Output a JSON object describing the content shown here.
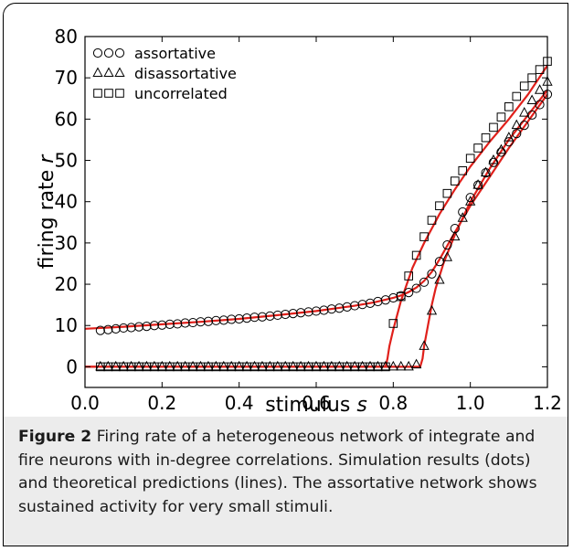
{
  "chart_data": {
    "type": "scatter",
    "xlabel": "stimulus",
    "xlabel_var": "s",
    "ylabel": "firing rate",
    "ylabel_var": "r",
    "xlim": [
      0,
      1.2
    ],
    "ylim": [
      -5,
      80
    ],
    "xticks": [
      "0.0",
      "0.2",
      "0.4",
      "0.6",
      "0.8",
      "1.0",
      "1.2"
    ],
    "yticks": [
      "0",
      "10",
      "20",
      "30",
      "40",
      "50",
      "60",
      "70",
      "80"
    ],
    "legend_position": "top-left",
    "series": [
      {
        "name": "assortative",
        "marker": "circle",
        "x": [
          0.04,
          0.06,
          0.08,
          0.1,
          0.12,
          0.14,
          0.16,
          0.18,
          0.2,
          0.22,
          0.24,
          0.26,
          0.28,
          0.3,
          0.32,
          0.34,
          0.36,
          0.38,
          0.4,
          0.42,
          0.44,
          0.46,
          0.48,
          0.5,
          0.52,
          0.54,
          0.56,
          0.58,
          0.6,
          0.62,
          0.64,
          0.66,
          0.68,
          0.7,
          0.72,
          0.74,
          0.76,
          0.78,
          0.8,
          0.82,
          0.84,
          0.86,
          0.88,
          0.9,
          0.92,
          0.94,
          0.96,
          0.98,
          1.0,
          1.02,
          1.04,
          1.06,
          1.08,
          1.1,
          1.12,
          1.14,
          1.16,
          1.18,
          1.2
        ],
        "y": [
          8.8,
          9.0,
          9.2,
          9.4,
          9.5,
          9.7,
          9.8,
          10.0,
          10.1,
          10.3,
          10.4,
          10.6,
          10.7,
          10.9,
          11.0,
          11.2,
          11.3,
          11.5,
          11.6,
          11.8,
          12.0,
          12.1,
          12.3,
          12.5,
          12.7,
          12.9,
          13.1,
          13.3,
          13.5,
          13.7,
          14.0,
          14.2,
          14.5,
          14.8,
          15.1,
          15.4,
          15.8,
          16.2,
          16.7,
          17.2,
          18.0,
          19.0,
          20.5,
          22.5,
          25.5,
          29.5,
          33.5,
          37.5,
          41.0,
          44.0,
          47.0,
          49.5,
          52.0,
          54.5,
          56.5,
          58.5,
          61.0,
          63.5,
          66.0
        ]
      },
      {
        "name": "disassortative",
        "marker": "triangle",
        "x": [
          0.04,
          0.06,
          0.08,
          0.1,
          0.12,
          0.14,
          0.16,
          0.18,
          0.2,
          0.22,
          0.24,
          0.26,
          0.28,
          0.3,
          0.32,
          0.34,
          0.36,
          0.38,
          0.4,
          0.42,
          0.44,
          0.46,
          0.48,
          0.5,
          0.52,
          0.54,
          0.56,
          0.58,
          0.6,
          0.62,
          0.64,
          0.66,
          0.68,
          0.7,
          0.72,
          0.74,
          0.76,
          0.78,
          0.8,
          0.82,
          0.84,
          0.86,
          0.88,
          0.9,
          0.92,
          0.94,
          0.96,
          0.98,
          1.0,
          1.02,
          1.04,
          1.06,
          1.08,
          1.1,
          1.12,
          1.14,
          1.16,
          1.18,
          1.2
        ],
        "y": [
          0,
          0,
          0,
          0,
          0,
          0,
          0,
          0,
          0,
          0,
          0,
          0,
          0,
          0,
          0,
          0,
          0,
          0,
          0,
          0,
          0,
          0,
          0,
          0,
          0,
          0,
          0,
          0,
          0,
          0,
          0,
          0,
          0,
          0,
          0,
          0,
          0,
          0,
          0,
          0,
          0,
          0.5,
          5.0,
          13.5,
          21.0,
          26.5,
          31.5,
          36.0,
          40.0,
          44.0,
          47.0,
          50.0,
          52.5,
          55.5,
          58.5,
          61.5,
          64.5,
          67.0,
          69.0
        ]
      },
      {
        "name": "uncorrelated",
        "marker": "square",
        "x": [
          0.04,
          0.06,
          0.08,
          0.1,
          0.12,
          0.14,
          0.16,
          0.18,
          0.2,
          0.22,
          0.24,
          0.26,
          0.28,
          0.3,
          0.32,
          0.34,
          0.36,
          0.38,
          0.4,
          0.42,
          0.44,
          0.46,
          0.48,
          0.5,
          0.52,
          0.54,
          0.56,
          0.58,
          0.6,
          0.62,
          0.64,
          0.66,
          0.68,
          0.7,
          0.72,
          0.74,
          0.76,
          0.78,
          0.8,
          0.82,
          0.84,
          0.86,
          0.88,
          0.9,
          0.92,
          0.94,
          0.96,
          0.98,
          1.0,
          1.02,
          1.04,
          1.06,
          1.08,
          1.1,
          1.12,
          1.14,
          1.16,
          1.18,
          1.2
        ],
        "y": [
          0,
          0,
          0,
          0,
          0,
          0,
          0,
          0,
          0,
          0,
          0,
          0,
          0,
          0,
          0,
          0,
          0,
          0,
          0,
          0,
          0,
          0,
          0,
          0,
          0,
          0,
          0,
          0,
          0,
          0,
          0,
          0,
          0,
          0,
          0,
          0,
          0,
          0,
          10.5,
          17.0,
          22.0,
          27.0,
          31.5,
          35.5,
          39.0,
          42.0,
          45.0,
          47.5,
          50.5,
          53.0,
          55.5,
          58.0,
          60.5,
          63.0,
          65.5,
          68.0,
          70.0,
          72.0,
          74.0
        ]
      }
    ],
    "theory_lines": [
      {
        "color": "#e0201b",
        "x": [
          0,
          0.1,
          0.2,
          0.3,
          0.4,
          0.5,
          0.6,
          0.7,
          0.75,
          0.8,
          0.82,
          0.84,
          0.86,
          0.88,
          0.9,
          0.92,
          0.95,
          1.0,
          1.05,
          1.1,
          1.15,
          1.2
        ],
        "y": [
          9.2,
          9.7,
          10.3,
          10.9,
          11.6,
          12.5,
          13.5,
          14.8,
          15.6,
          16.7,
          17.3,
          18.1,
          19.2,
          20.8,
          23.0,
          26.0,
          31.0,
          39.0,
          46.0,
          53.0,
          59.5,
          66.0
        ]
      },
      {
        "color": "#e0201b",
        "x": [
          0,
          0.2,
          0.4,
          0.6,
          0.8,
          0.87,
          0.876,
          0.88,
          0.89,
          0.9,
          0.91,
          0.93,
          0.96,
          1.0,
          1.05,
          1.1,
          1.15,
          1.2
        ],
        "y": [
          0,
          0,
          0,
          0,
          0,
          0,
          2,
          5,
          10,
          15,
          19,
          25,
          32,
          40,
          48,
          55,
          61,
          67
        ]
      },
      {
        "color": "#e0201b",
        "x": [
          0,
          0.2,
          0.4,
          0.6,
          0.78,
          0.785,
          0.79,
          0.8,
          0.82,
          0.85,
          0.88,
          0.92,
          0.96,
          1.0,
          1.05,
          1.1,
          1.15,
          1.2
        ],
        "y": [
          0,
          0,
          0,
          0,
          0,
          2,
          5,
          9,
          16,
          24,
          30,
          37,
          43,
          48.5,
          54.5,
          60,
          66,
          73
        ]
      }
    ]
  },
  "caption": {
    "label": "Figure 2",
    "text": " Firing rate of a heterogeneous network of integrate and fire neurons with in-degree correlations. Simulation results (dots) and theoretical predictions (lines). The assortative network shows sustained activity for very small stimuli."
  },
  "colors": {
    "line": "#e0201b",
    "marker": "#000000",
    "caption_bg": "#ececec"
  }
}
